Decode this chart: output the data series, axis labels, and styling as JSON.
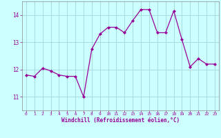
{
  "x": [
    0,
    1,
    2,
    3,
    4,
    5,
    6,
    7,
    8,
    9,
    10,
    11,
    12,
    13,
    14,
    15,
    16,
    17,
    18,
    19,
    20,
    21,
    22,
    23
  ],
  "y": [
    11.8,
    11.75,
    12.05,
    11.95,
    11.8,
    11.75,
    11.75,
    11.0,
    12.75,
    13.3,
    13.55,
    13.55,
    13.35,
    13.8,
    14.2,
    14.2,
    13.35,
    13.35,
    14.15,
    13.1,
    12.1,
    12.4,
    12.2,
    12.2
  ],
  "line_color": "#990099",
  "marker": "D",
  "marker_size": 2,
  "bg_color": "#ccffff",
  "grid_color": "#aadddd",
  "xlabel": "Windchill (Refroidissement éolien,°C)",
  "xlabel_color": "#990099",
  "tick_color": "#990099",
  "spine_color": "#888888",
  "ylim": [
    10.5,
    14.5
  ],
  "xlim": [
    -0.5,
    23.5
  ],
  "yticks": [
    11,
    12,
    13,
    14
  ],
  "xticks": [
    0,
    1,
    2,
    3,
    4,
    5,
    6,
    7,
    8,
    9,
    10,
    11,
    12,
    13,
    14,
    15,
    16,
    17,
    18,
    19,
    20,
    21,
    22,
    23
  ]
}
